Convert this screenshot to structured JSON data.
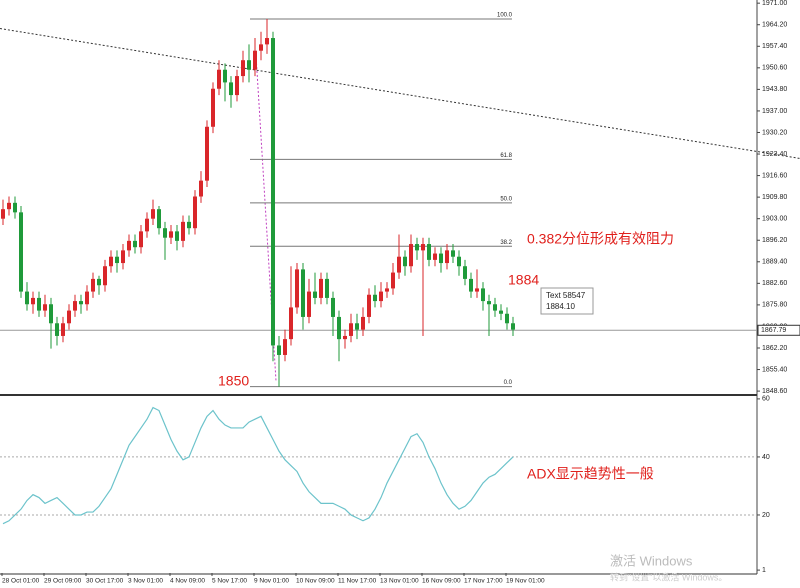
{
  "chart_data": {
    "type": "candlestick",
    "up_color": "#d9262a",
    "down_color": "#1f9a3a",
    "ylim": [
      1848,
      1972
    ],
    "yticks": [
      {
        "value": 1971,
        "label": "1971.00"
      },
      {
        "value": 1964.2,
        "label": "1964.20"
      },
      {
        "value": 1957.4,
        "label": "1957.40"
      },
      {
        "value": 1950.6,
        "label": "1950.60"
      },
      {
        "value": 1943.8,
        "label": "1943.80"
      },
      {
        "value": 1937,
        "label": "1937.00"
      },
      {
        "value": 1930.2,
        "label": "1930.20"
      },
      {
        "value": 1923.4,
        "label": "1923.40"
      },
      {
        "value": 1916.6,
        "label": "1916.60"
      },
      {
        "value": 1909.8,
        "label": "1909.80"
      },
      {
        "value": 1903,
        "label": "1903.00"
      },
      {
        "value": 1896.2,
        "label": "1896.20"
      },
      {
        "value": 1889.4,
        "label": "1889.40"
      },
      {
        "value": 1882.6,
        "label": "1882.60"
      },
      {
        "value": 1875.8,
        "label": "1875.80"
      },
      {
        "value": 1869,
        "label": "1869.00"
      },
      {
        "value": 1862.2,
        "label": "1862.20"
      },
      {
        "value": 1855.4,
        "label": "1855.40"
      },
      {
        "value": 1848.6,
        "label": "1848.60"
      }
    ],
    "current_price": {
      "value": 1867.79,
      "label": "1867.79"
    },
    "x_labels": [
      "28 Oct 01:00",
      "29 Oct 09:00",
      "30 Oct 17:00",
      "3 Nov 01:00",
      "4 Nov 09:00",
      "5 Nov 17:00",
      "9 Nov 01:00",
      "10 Nov 09:00",
      "11 Nov 17:00",
      "13 Nov 01:00",
      "16 Nov 09:00",
      "17 Nov 17:00",
      "19 Nov 01:00"
    ],
    "candles": [
      [
        1903,
        1909,
        1901,
        1906
      ],
      [
        1906,
        1910,
        1904,
        1908
      ],
      [
        1908,
        1910,
        1903,
        1905
      ],
      [
        1905,
        1907,
        1878,
        1880
      ],
      [
        1880,
        1883,
        1874,
        1876
      ],
      [
        1876,
        1880,
        1873,
        1878
      ],
      [
        1878,
        1880,
        1872,
        1874
      ],
      [
        1874,
        1879,
        1872,
        1876
      ],
      [
        1876,
        1878,
        1862,
        1870
      ],
      [
        1870,
        1872,
        1863,
        1866
      ],
      [
        1866,
        1872,
        1864,
        1870
      ],
      [
        1870,
        1876,
        1868,
        1874
      ],
      [
        1874,
        1879,
        1872,
        1877
      ],
      [
        1877,
        1879,
        1873,
        1876
      ],
      [
        1876,
        1882,
        1874,
        1880
      ],
      [
        1880,
        1886,
        1878,
        1884
      ],
      [
        1884,
        1885,
        1879,
        1882
      ],
      [
        1882,
        1890,
        1880,
        1888
      ],
      [
        1888,
        1893,
        1886,
        1891
      ],
      [
        1891,
        1893,
        1886,
        1889
      ],
      [
        1889,
        1895,
        1887,
        1893
      ],
      [
        1893,
        1898,
        1891,
        1896
      ],
      [
        1896,
        1898,
        1892,
        1894
      ],
      [
        1894,
        1901,
        1892,
        1899
      ],
      [
        1899,
        1905,
        1897,
        1903
      ],
      [
        1903,
        1909,
        1901,
        1906
      ],
      [
        1906,
        1907,
        1898,
        1900
      ],
      [
        1900,
        1902,
        1890,
        1897
      ],
      [
        1897,
        1901,
        1895,
        1899
      ],
      [
        1899,
        1901,
        1893,
        1896
      ],
      [
        1896,
        1904,
        1894,
        1902
      ],
      [
        1902,
        1904,
        1898,
        1900
      ],
      [
        1900,
        1912,
        1898,
        1910
      ],
      [
        1910,
        1918,
        1908,
        1915
      ],
      [
        1915,
        1934,
        1913,
        1932
      ],
      [
        1932,
        1946,
        1930,
        1944
      ],
      [
        1944,
        1953,
        1942,
        1950
      ],
      [
        1950,
        1952,
        1940,
        1946
      ],
      [
        1946,
        1948,
        1938,
        1942
      ],
      [
        1942,
        1950,
        1940,
        1948
      ],
      [
        1948,
        1956,
        1946,
        1953
      ],
      [
        1953,
        1958,
        1946,
        1950
      ],
      [
        1950,
        1960,
        1948,
        1956
      ],
      [
        1956,
        1962,
        1953,
        1958
      ],
      [
        1958,
        1966,
        1955,
        1960
      ],
      [
        1960,
        1962,
        1858,
        1863
      ],
      [
        1863,
        1866,
        1850,
        1860
      ],
      [
        1860,
        1868,
        1858,
        1865
      ],
      [
        1865,
        1888,
        1863,
        1875
      ],
      [
        1875,
        1889,
        1873,
        1887
      ],
      [
        1887,
        1889,
        1868,
        1872
      ],
      [
        1872,
        1884,
        1870,
        1880
      ],
      [
        1880,
        1886,
        1876,
        1878
      ],
      [
        1878,
        1886,
        1876,
        1884
      ],
      [
        1884,
        1886,
        1876,
        1878
      ],
      [
        1878,
        1880,
        1866,
        1872
      ],
      [
        1872,
        1874,
        1858,
        1865
      ],
      [
        1865,
        1868,
        1862,
        1866
      ],
      [
        1866,
        1873,
        1864,
        1870
      ],
      [
        1870,
        1873,
        1865,
        1868
      ],
      [
        1868,
        1875,
        1866,
        1872
      ],
      [
        1872,
        1881,
        1870,
        1879
      ],
      [
        1879,
        1882,
        1875,
        1877
      ],
      [
        1877,
        1883,
        1875,
        1880
      ],
      [
        1880,
        1883,
        1878,
        1881
      ],
      [
        1881,
        1889,
        1879,
        1886
      ],
      [
        1886,
        1898,
        1884,
        1891
      ],
      [
        1891,
        1893,
        1885,
        1888
      ],
      [
        1888,
        1898,
        1886,
        1895
      ],
      [
        1895,
        1897,
        1890,
        1893
      ],
      [
        1893,
        1897,
        1866,
        1895
      ],
      [
        1895,
        1897,
        1888,
        1890
      ],
      [
        1890,
        1894,
        1888,
        1892
      ],
      [
        1892,
        1894,
        1886,
        1889
      ],
      [
        1889,
        1895,
        1887,
        1893
      ],
      [
        1893,
        1895,
        1889,
        1891
      ],
      [
        1891,
        1893,
        1885,
        1888
      ],
      [
        1888,
        1890,
        1882,
        1884
      ],
      [
        1884,
        1886,
        1878,
        1880
      ],
      [
        1880,
        1887,
        1878,
        1881
      ],
      [
        1881,
        1883,
        1874,
        1877
      ],
      [
        1877,
        1879,
        1866,
        1876
      ],
      [
        1876,
        1878,
        1872,
        1874
      ],
      [
        1874,
        1876,
        1871,
        1873
      ],
      [
        1873,
        1875,
        1868,
        1870
      ],
      [
        1870,
        1872,
        1866,
        1868
      ]
    ],
    "fib_levels": [
      {
        "label": "100.0",
        "value": 1966
      },
      {
        "label": "61.8",
        "value": 1921.7
      },
      {
        "label": "50.0",
        "value": 1908
      },
      {
        "label": "38.2",
        "value": 1894.3
      },
      {
        "label": "0.0",
        "value": 1850
      }
    ],
    "trendline": [
      1963,
      1922
    ],
    "text_box": [
      "Text 58547",
      "1884.10"
    ],
    "annotations": [
      "0.382分位形成有效阻力",
      "1884",
      "1850",
      "ADX显示趋势性一般"
    ],
    "adx": {
      "color": "#6cc3cb",
      "ylim": [
        0,
        61
      ],
      "yticks": [
        60,
        40,
        20,
        1
      ],
      "values": [
        17,
        18,
        20,
        22,
        25,
        27,
        26,
        24,
        25,
        26,
        24,
        22,
        20,
        20,
        21,
        21,
        23,
        26,
        29,
        34,
        39,
        44,
        47,
        50,
        53,
        57,
        56,
        51,
        46,
        42,
        39,
        40,
        45,
        50,
        54,
        56,
        53,
        51,
        50,
        50,
        50,
        52,
        53,
        54,
        50,
        46,
        42,
        39,
        37,
        35,
        31,
        28,
        26,
        24,
        24,
        24,
        23,
        22,
        20,
        19,
        18,
        19,
        22,
        26,
        31,
        35,
        39,
        43,
        47,
        48,
        45,
        40,
        36,
        31,
        27,
        24,
        22,
        23,
        25,
        28,
        31,
        33,
        34,
        36,
        38,
        40
      ]
    },
    "watermark": [
      "激活 Windows",
      "转到\"设置\"以激活 Windows。"
    ]
  }
}
